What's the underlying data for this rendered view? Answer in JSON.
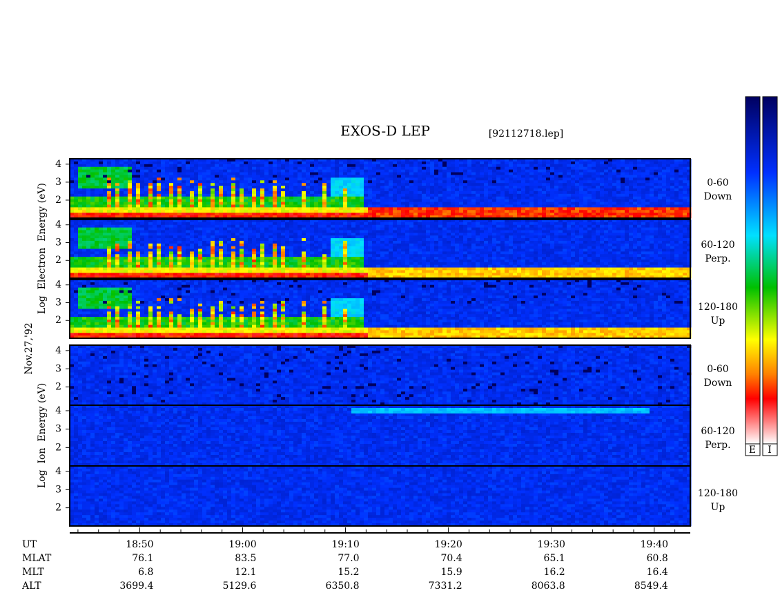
{
  "chart_data": {
    "type": "spectrogram",
    "title": "EXOS-D LEP",
    "file": "[92112718.lep]",
    "date": "Nov.27,'92",
    "xlim": [
      1123.2,
      1183.5
    ],
    "xticks": [
      {
        "value": 1130,
        "label": "18:50"
      },
      {
        "value": 1140,
        "label": "19:00"
      },
      {
        "value": 1150,
        "label": "19:10"
      },
      {
        "value": 1160,
        "label": "19:20"
      },
      {
        "value": 1170,
        "label": "19:30"
      },
      {
        "value": 1180,
        "label": "19:40"
      }
    ],
    "xminorticks": [
      1124,
      1126,
      1128,
      1132,
      1134,
      1136,
      1138,
      1142,
      1144,
      1146,
      1148,
      1152,
      1154,
      1156,
      1158,
      1162,
      1164,
      1166,
      1168,
      1172,
      1174,
      1176,
      1178,
      1182
    ],
    "ylim": [
      1,
      4.3
    ],
    "yticks": [
      2,
      3,
      4
    ],
    "groups": [
      {
        "ylabel": "Log  Electron  Energy (eV)",
        "species": "electron",
        "panels": [
          {
            "label": [
              "0-60",
              "Down"
            ]
          },
          {
            "label": [
              "60-120",
              "Perp."
            ]
          },
          {
            "label": [
              "120-180",
              "Up"
            ]
          }
        ]
      },
      {
        "ylabel": "Log  Ion  Energy (eV)",
        "species": "ion",
        "panels": [
          {
            "label": [
              "0-60",
              "Down"
            ]
          },
          {
            "label": [
              "60-120",
              "Perp."
            ]
          },
          {
            "label": [
              "120-180",
              "Up"
            ]
          }
        ]
      }
    ],
    "ephemeris_time_label": "UT",
    "ephemeris": [
      {
        "name": "MLAT",
        "values": [
          76.1,
          83.5,
          77,
          70.4,
          65.1,
          60.8
        ],
        "value_labels": [
          null,
          null,
          "77.0",
          null,
          null,
          null
        ]
      },
      {
        "name": "MLT",
        "values": [
          6.8,
          12.1,
          15.2,
          15.9,
          16.2,
          16.4
        ]
      },
      {
        "name": "ALT",
        "values": [
          3699.4,
          5129.6,
          6350.8,
          7331.2,
          8063.8,
          8549.4
        ]
      }
    ],
    "colorbar_labels": [
      "E",
      "I"
    ]
  }
}
